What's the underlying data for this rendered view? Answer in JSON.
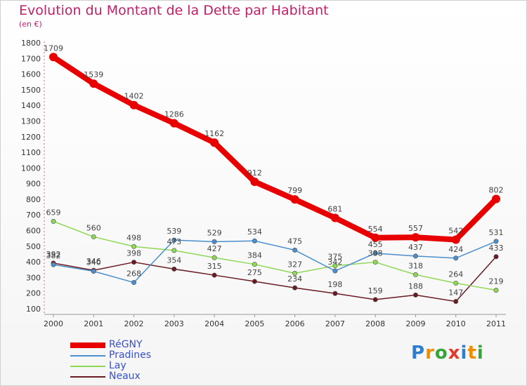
{
  "title": "Evolution du Montant de la Dette par Habitant",
  "unit": "(en €)",
  "brand": {
    "text": "Proxiti",
    "letters": [
      {
        "ch": "P",
        "color": "#2f7fd0"
      },
      {
        "ch": "r",
        "color": "#f08c00"
      },
      {
        "ch": "o",
        "color": "#37a43a"
      },
      {
        "ch": "x",
        "color": "#e23a2b"
      },
      {
        "ch": "i",
        "color": "#2f7fd0"
      },
      {
        "ch": "t",
        "color": "#f08c00"
      },
      {
        "ch": "i",
        "color": "#37a43a"
      }
    ]
  },
  "chart_data": {
    "type": "line",
    "title": "Evolution du Montant de la Dette par Habitant",
    "ylabel": "(en €)",
    "xlabel": "",
    "categories": [
      "2000",
      "2001",
      "2002",
      "2003",
      "2004",
      "2005",
      "2006",
      "2007",
      "2008",
      "2009",
      "2010",
      "2011"
    ],
    "ylim": [
      100,
      1800
    ],
    "yticks": [
      100,
      200,
      300,
      400,
      500,
      600,
      700,
      800,
      900,
      1000,
      1100,
      1200,
      1300,
      1400,
      1500,
      1600,
      1700,
      1800
    ],
    "grid": false,
    "legend": "bottom-left",
    "series": [
      {
        "name": "RéGNY",
        "color": "#e80000",
        "values": [
          1709,
          1539,
          1402,
          1286,
          1162,
          912,
          799,
          681,
          554,
          557,
          542,
          802
        ]
      },
      {
        "name": "Pradines",
        "color": "#4a8fcc",
        "values": [
          382,
          340,
          268,
          539,
          529,
          534,
          475,
          342,
          455,
          437,
          424,
          531
        ]
      },
      {
        "name": "Lay",
        "color": "#8ed856",
        "values": [
          659,
          560,
          498,
          473,
          427,
          384,
          327,
          375,
          398,
          318,
          264,
          219
        ]
      },
      {
        "name": "Neaux",
        "color": "#6a1a22",
        "values": [
          392,
          346,
          398,
          354,
          315,
          275,
          234,
          198,
          159,
          188,
          147,
          433
        ]
      }
    ]
  }
}
